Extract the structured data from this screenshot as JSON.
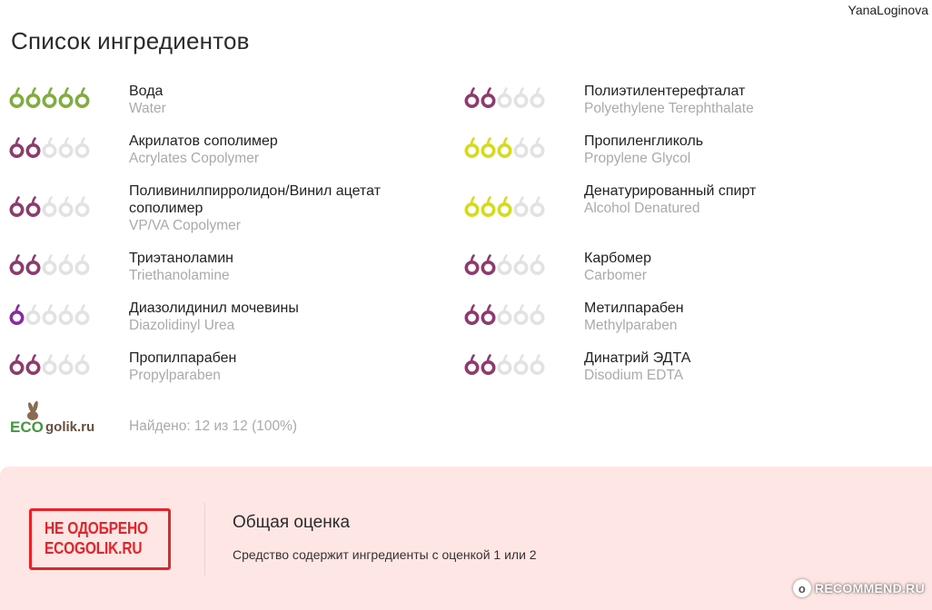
{
  "header": {
    "username": "YanaLoginova"
  },
  "page_title": "Список ингредиентов",
  "colors": {
    "green": "#7fad3e",
    "purple": "#8f3a6e",
    "violet": "#8c2aa6",
    "yellow": "#d4db1c",
    "empty": "#e2e2e2",
    "stamp_red": "#e8222a",
    "verdict_bg": "#fde6e4"
  },
  "ingredients_left": [
    {
      "ru": "Вода",
      "en": "Water",
      "rating": 5,
      "color": "green"
    },
    {
      "ru": "Акрилатов сополимер",
      "en": "Acrylates Copolymer",
      "rating": 2,
      "color": "purple"
    },
    {
      "ru": "Поливинилпирролидон/Винил ацетат сополимер",
      "en": "VP/VA Copolymer",
      "rating": 2,
      "color": "purple"
    },
    {
      "ru": "Триэтаноламин",
      "en": "Triethanolamine",
      "rating": 2,
      "color": "purple"
    },
    {
      "ru": "Диазолидинил мочевины",
      "en": "Diazolidinyl Urea",
      "rating": 1,
      "color": "violet"
    },
    {
      "ru": "Пропилпарабен",
      "en": "Propylparaben",
      "rating": 2,
      "color": "purple"
    }
  ],
  "ingredients_right": [
    {
      "ru": "Полиэтилентерефталат",
      "en": "Polyethylene Terephthalate",
      "rating": 2,
      "color": "purple"
    },
    {
      "ru": "Пропиленгликоль",
      "en": "Propylene Glycol",
      "rating": 3,
      "color": "yellow"
    },
    {
      "ru": "Денатурированный спирт",
      "en": "Alcohol Denatured",
      "rating": 3,
      "color": "yellow"
    },
    {
      "ru": "Карбомер",
      "en": "Carbomer",
      "rating": 2,
      "color": "purple"
    },
    {
      "ru": "Метилпарабен",
      "en": "Methylparaben",
      "rating": 2,
      "color": "purple"
    },
    {
      "ru": "Динатрий ЭДТА",
      "en": "Disodium EDTA",
      "rating": 2,
      "color": "purple"
    }
  ],
  "logo": {
    "eco": "ECO",
    "rest": "golik.ru"
  },
  "found_text": "Найдено: 12 из 12 (100%)",
  "verdict": {
    "stamp_line1": "НЕ ОДОБРЕНО",
    "stamp_line2": "ECOGOLIK.RU",
    "title": "Общая оценка",
    "text": "Средство содержит ингредиенты с оценкой 1 или 2"
  },
  "watermark": {
    "text": "RECOMMEND.RU",
    "icon": "otzovik-icon"
  }
}
